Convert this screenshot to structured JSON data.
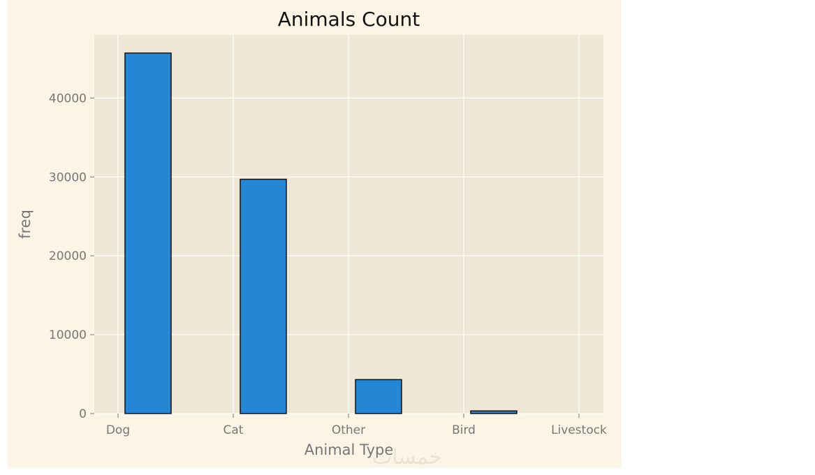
{
  "chart_data": {
    "type": "bar",
    "title": "Animals Count",
    "xlabel": "Animal Type",
    "ylabel": "freq",
    "categories": [
      "Dog",
      "Cat",
      "Other",
      "Bird",
      "Livestock"
    ],
    "bars": [
      {
        "category": "Dog",
        "value": 45700
      },
      {
        "category": "Cat",
        "value": 29700
      },
      {
        "category": "Other",
        "value": 4300
      },
      {
        "category": "Bird",
        "value": 330
      },
      {
        "category": "Livestock",
        "value": 10
      }
    ],
    "yticks": [
      0,
      10000,
      20000,
      30000,
      40000
    ],
    "ylim": [
      0,
      48000
    ],
    "grid": true,
    "colors": {
      "bar": "#2487d6",
      "bar_edge": "#111111",
      "plot_background": "#efe7d6",
      "figure_background": "#fcf4e5",
      "grid": "#ffffff"
    }
  },
  "watermark": "خمسات"
}
